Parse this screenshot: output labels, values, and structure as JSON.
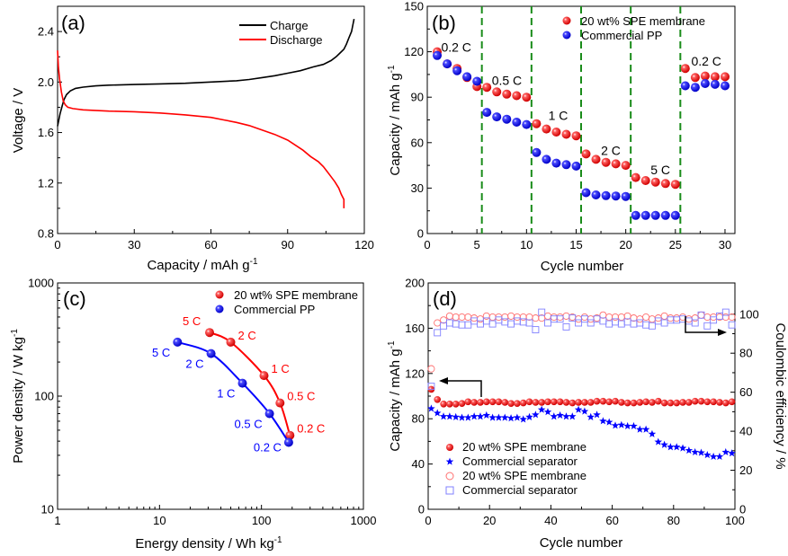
{
  "chart_data": [
    {
      "id": "a",
      "type": "line",
      "panel_label": "(a)",
      "title": "",
      "xlabel": "Capacity / mAh g",
      "xlabel_sup": "-1",
      "ylabel": "Voltage / V",
      "xlim": [
        0,
        120
      ],
      "ylim": [
        0.8,
        2.6
      ],
      "xticks": [
        0,
        30,
        60,
        90,
        120
      ],
      "xtick_labels": [
        "0",
        "30",
        "60",
        "90",
        "120"
      ],
      "yticks": [
        0.8,
        1.2,
        1.6,
        2.0,
        2.4
      ],
      "ytick_labels": [
        "0.8",
        "1.2",
        "1.6",
        "2.0",
        "2.4"
      ],
      "legend_position": "top-right",
      "series": [
        {
          "name": "Charge",
          "color": "#000000",
          "x": [
            0,
            0.5,
            1,
            1.8,
            2.5,
            3.5,
            5,
            7,
            10,
            15,
            20,
            30,
            40,
            50,
            60,
            70,
            75,
            80,
            85,
            90,
            95,
            100,
            104,
            107,
            109,
            110.5,
            112,
            113,
            114,
            115,
            115.5,
            116
          ],
          "y": [
            1.65,
            1.7,
            1.75,
            1.81,
            1.86,
            1.9,
            1.93,
            1.95,
            1.96,
            1.97,
            1.975,
            1.98,
            1.985,
            1.99,
            2.0,
            2.01,
            2.02,
            2.035,
            2.05,
            2.07,
            2.09,
            2.12,
            2.14,
            2.17,
            2.2,
            2.23,
            2.26,
            2.3,
            2.35,
            2.4,
            2.45,
            2.5
          ]
        },
        {
          "name": "Discharge",
          "color": "#ff0000",
          "x": [
            0,
            0.3,
            0.8,
            1.5,
            2.2,
            3,
            4,
            6,
            10,
            20,
            30,
            40,
            50,
            60,
            65,
            70,
            75,
            80,
            85,
            90,
            93,
            96,
            99,
            102,
            104,
            105.5,
            107,
            108.5,
            110,
            111,
            112,
            112
          ],
          "y": [
            2.25,
            2.12,
            2.02,
            1.92,
            1.85,
            1.82,
            1.8,
            1.79,
            1.78,
            1.77,
            1.765,
            1.755,
            1.74,
            1.72,
            1.7,
            1.68,
            1.655,
            1.62,
            1.585,
            1.54,
            1.5,
            1.46,
            1.41,
            1.37,
            1.33,
            1.29,
            1.25,
            1.21,
            1.16,
            1.11,
            1.07,
            1.0
          ]
        }
      ]
    },
    {
      "id": "b",
      "type": "scatter",
      "panel_label": "(b)",
      "title": "",
      "xlabel": "Cycle number",
      "ylabel": "Capacity / mAh g",
      "ylabel_sup": "-1",
      "xlim": [
        0,
        31
      ],
      "ylim": [
        0,
        150
      ],
      "xticks": [
        0,
        5,
        10,
        15,
        20,
        25,
        30
      ],
      "xtick_labels": [
        "0",
        "5",
        "10",
        "15",
        "20",
        "25",
        "30"
      ],
      "yticks": [
        0,
        30,
        60,
        90,
        120,
        150
      ],
      "ytick_labels": [
        "0",
        "30",
        "60",
        "90",
        "120",
        "150"
      ],
      "legend_position": "top-right",
      "dividers": [
        5.5,
        10.5,
        15.5,
        20.5,
        25.5
      ],
      "divider_color": "#1a8c1a",
      "rate_labels": [
        {
          "text": "0.2 C",
          "x": 1.4,
          "y": 120
        },
        {
          "text": "0.5 C",
          "x": 6.5,
          "y": 98
        },
        {
          "text": "1 C",
          "x": 12.2,
          "y": 75
        },
        {
          "text": "2 C",
          "x": 17.5,
          "y": 52
        },
        {
          "text": "5 C",
          "x": 22.5,
          "y": 39
        },
        {
          "text": "0.2 C",
          "x": 26.6,
          "y": 111
        }
      ],
      "x": [
        1,
        2,
        3,
        4,
        5,
        6,
        7,
        8,
        9,
        10,
        11,
        12,
        13,
        14,
        15,
        16,
        17,
        18,
        19,
        20,
        21,
        22,
        23,
        24,
        25,
        26,
        27,
        28,
        29,
        30
      ],
      "series": [
        {
          "name": "20 wt% SPE membrane",
          "color": "#ff0000",
          "values": [
            120,
            112,
            109,
            103,
            97,
            96.5,
            93.5,
            92,
            91,
            90,
            72.5,
            69,
            67,
            65.5,
            64.5,
            52.5,
            49,
            47,
            46,
            45,
            37,
            35,
            34,
            33,
            32.5,
            109,
            103,
            104,
            103.5,
            103.5
          ]
        },
        {
          "name": "Commercial PP",
          "color": "#0000ff",
          "values": [
            117.5,
            112,
            107.5,
            103.5,
            100.5,
            80,
            77,
            75.5,
            73.5,
            72,
            53.5,
            49,
            46.5,
            45.5,
            44.5,
            27,
            25.5,
            25,
            24.8,
            24.5,
            12,
            12,
            12,
            12,
            12,
            97.5,
            96.5,
            99,
            98.5,
            97.5
          ]
        }
      ]
    },
    {
      "id": "c",
      "type": "scatter",
      "panel_label": "(c)",
      "title": "",
      "xlabel": "Energy density / Wh kg",
      "xlabel_sup": "-1",
      "ylabel": "Power density / W kg",
      "ylabel_sup": "-1",
      "xscale": "log",
      "yscale": "log",
      "xlim": [
        1,
        1000
      ],
      "ylim": [
        10,
        1000
      ],
      "xticks": [
        1,
        10,
        100,
        1000
      ],
      "xtick_labels": [
        "1",
        "10",
        "100",
        "1000"
      ],
      "yticks": [
        10,
        100,
        1000
      ],
      "ytick_labels": [
        "10",
        "100",
        "1000"
      ],
      "legend_position": "top-right",
      "series": [
        {
          "name": "20 wt% SPE membrane",
          "color": "#ff0000",
          "points": [
            {
              "rate": "5 C",
              "x": 31,
              "y": 365
            },
            {
              "rate": "2 C",
              "x": 50,
              "y": 300
            },
            {
              "rate": "1 C",
              "x": 106,
              "y": 152
            },
            {
              "rate": "0.5 C",
              "x": 152,
              "y": 87
            },
            {
              "rate": "0.2 C",
              "x": 190,
              "y": 45
            }
          ]
        },
        {
          "name": "Commercial PP",
          "color": "#0000ff",
          "points": [
            {
              "rate": "5 C",
              "x": 15,
              "y": 300
            },
            {
              "rate": "2 C",
              "x": 32,
              "y": 238
            },
            {
              "rate": "1 C",
              "x": 65,
              "y": 130
            },
            {
              "rate": "0.5 C",
              "x": 120,
              "y": 70
            },
            {
              "rate": "0.2 C",
              "x": 185,
              "y": 39
            }
          ]
        }
      ]
    },
    {
      "id": "d",
      "type": "scatter",
      "panel_label": "(d)",
      "title": "",
      "xlabel": "Cycle number",
      "ylabel": "Capacity / mAh g",
      "ylabel_sup": "-1",
      "ylabel_right": "Coulombic efficiency / %",
      "xlim": [
        0,
        100
      ],
      "ylim": [
        0,
        200
      ],
      "ylim_right": [
        0,
        116
      ],
      "xticks": [
        0,
        20,
        40,
        60,
        80,
        100
      ],
      "xtick_labels": [
        "0",
        "20",
        "40",
        "60",
        "80",
        "100"
      ],
      "yticks": [
        0,
        40,
        80,
        120,
        160,
        200
      ],
      "ytick_labels": [
        "0",
        "40",
        "80",
        "120",
        "160",
        "200"
      ],
      "yticks_right": [
        0,
        20,
        40,
        60,
        80,
        100
      ],
      "ytick_labels_right": [
        "0",
        "20",
        "40",
        "60",
        "80",
        "100"
      ],
      "legend_position": "bottom-left",
      "x": [
        1,
        3,
        5,
        7,
        9,
        11,
        13,
        15,
        17,
        19,
        21,
        23,
        25,
        27,
        29,
        31,
        33,
        35,
        37,
        39,
        41,
        43,
        45,
        47,
        49,
        51,
        53,
        55,
        57,
        59,
        61,
        63,
        65,
        67,
        69,
        71,
        73,
        75,
        77,
        79,
        81,
        83,
        85,
        87,
        89,
        91,
        93,
        95,
        97,
        99
      ],
      "series": [
        {
          "name": "20 wt% SPE membrane",
          "axis": "left",
          "marker": "filled-circle",
          "color": "#ff0000",
          "values": [
            106,
            97,
            93,
            93,
            93,
            93.5,
            95,
            94.5,
            94.5,
            95,
            95,
            95,
            94.5,
            93.5,
            93.5,
            94,
            95,
            94.5,
            94.5,
            95,
            95,
            95,
            94.5,
            94,
            94.5,
            94.5,
            94.5,
            95.5,
            95.5,
            95,
            95.5,
            94.5,
            94,
            94,
            94.5,
            95,
            94.5,
            95.5,
            94,
            94,
            94,
            94.5,
            94.5,
            95.5,
            95.5,
            95,
            95,
            94.5,
            94,
            95
          ]
        },
        {
          "name": "Commercial separator",
          "axis": "left",
          "marker": "filled-star",
          "color": "#0000ff",
          "values": [
            89,
            85,
            82,
            82,
            81.5,
            81,
            81,
            82,
            82,
            83,
            81,
            81,
            81,
            80.5,
            81,
            79.5,
            81.5,
            83.5,
            88,
            86,
            82,
            83,
            82,
            82,
            88,
            86.5,
            81.5,
            83.5,
            78,
            77,
            74,
            74.5,
            73.5,
            73.5,
            70.5,
            70.5,
            66.5,
            59.5,
            57,
            55,
            55,
            54,
            52,
            50.5,
            50,
            48,
            46.5,
            46.5,
            50.5,
            49.5
          ]
        },
        {
          "name": "20 wt% SPE membrane",
          "axis": "right",
          "marker": "open-circle",
          "color": "#ff7070",
          "values": [
            72,
            95.5,
            97,
            99,
            98.5,
            98.5,
            98.5,
            98,
            97.5,
            99,
            98.5,
            98.5,
            98.5,
            99,
            98.5,
            98.5,
            98.5,
            98,
            98,
            99,
            98.5,
            98.5,
            99,
            98.5,
            97.5,
            98.5,
            97.5,
            98,
            99.5,
            98.5,
            98.5,
            98.5,
            99,
            98,
            97.5,
            98.5,
            97.5,
            98,
            99,
            98,
            98,
            98.5,
            97.5,
            98,
            99.5,
            98.5,
            98.5,
            98.5,
            98.5,
            98.5
          ]
        },
        {
          "name": "Commercial separator",
          "axis": "right",
          "marker": "open-square",
          "color": "#8080ff",
          "values": [
            63,
            90.5,
            94,
            95.5,
            95,
            94.5,
            94.5,
            96.5,
            95,
            96.5,
            95,
            97,
            96,
            95,
            96.5,
            96,
            95.5,
            92,
            101,
            95.5,
            97.5,
            97.5,
            93.5,
            98,
            95.5,
            97.5,
            95.5,
            97.5,
            96.5,
            95,
            96,
            95,
            96,
            95,
            95.5,
            94.5,
            94,
            96.5,
            95.5,
            97,
            97,
            97.5,
            96.5,
            95.5,
            99.5,
            94,
            97,
            99,
            101,
            94.5
          ]
        }
      ],
      "arrows": [
        {
          "direction": "left",
          "label": "points to left axis"
        },
        {
          "direction": "right",
          "label": "points to right axis"
        }
      ]
    }
  ]
}
